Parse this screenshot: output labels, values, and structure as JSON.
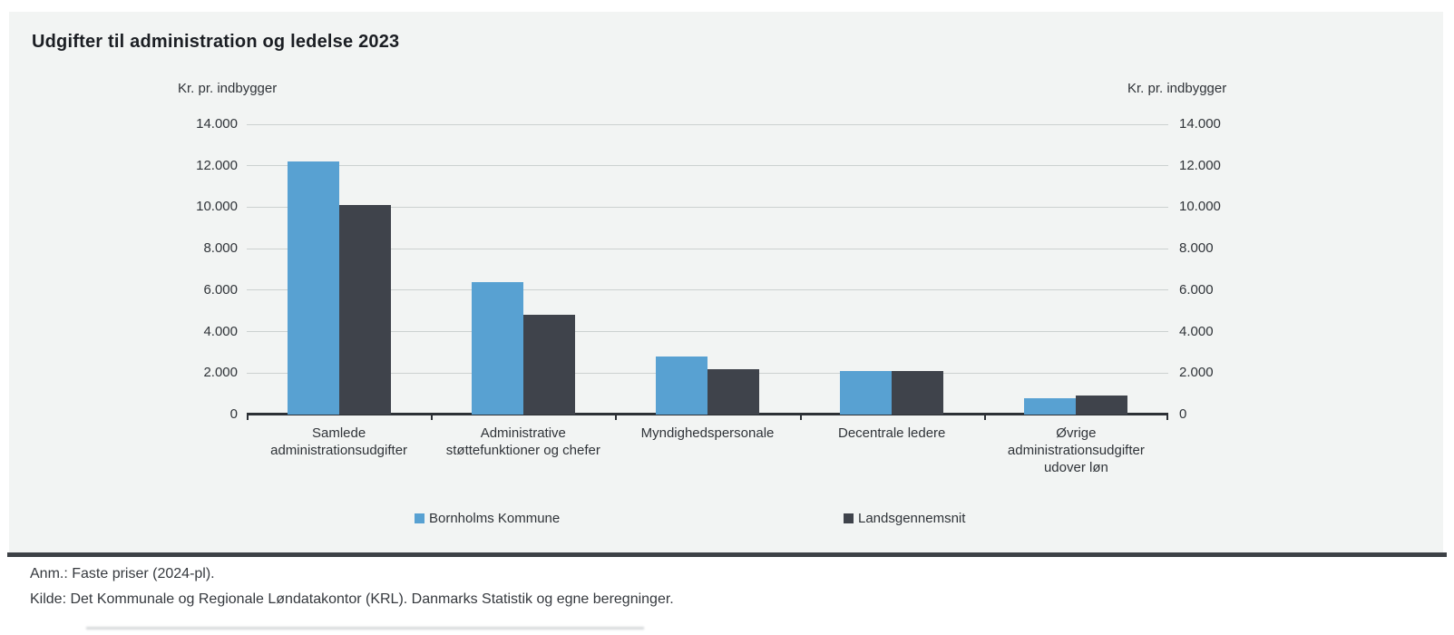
{
  "chart_data": {
    "type": "bar",
    "title": "Udgifter til administration og ledelse 2023",
    "ylabel": "Kr. pr. indbygger",
    "ylabel_right": "Kr. pr. indbygger",
    "ylim": [
      0,
      14000
    ],
    "ytick_step": 2000,
    "ytick_labels": [
      "0",
      "2.000",
      "4.000",
      "6.000",
      "8.000",
      "10.000",
      "12.000",
      "14.000"
    ],
    "grid": true,
    "legend_position": "bottom",
    "categories": [
      "Samlede administrationsudgifter",
      "Administrative støttefunktioner og chefer",
      "Myndighedspersonale",
      "Decentrale ledere",
      "Øvrige administrationsudgifter udover løn"
    ],
    "series": [
      {
        "name": "Bornholms Kommune",
        "color": "#58a1d2",
        "values": [
          12200,
          6400,
          2800,
          2100,
          800
        ]
      },
      {
        "name": "Landsgennemsnit",
        "color": "#3f434b",
        "values": [
          10100,
          4800,
          2200,
          2100,
          900
        ]
      }
    ]
  },
  "colors": {
    "card_background": "#f2f4f3",
    "gridline": "#ccd1d0",
    "axis_line": "#2c3035",
    "series_blue": "#58a1d2",
    "series_dark": "#3f434b"
  },
  "footnotes": {
    "note": "Anm.: Faste priser (2024-pl).",
    "source": "Kilde: Det Kommunale og Regionale Løndatakontor (KRL). Danmarks Statistik og egne beregninger."
  }
}
